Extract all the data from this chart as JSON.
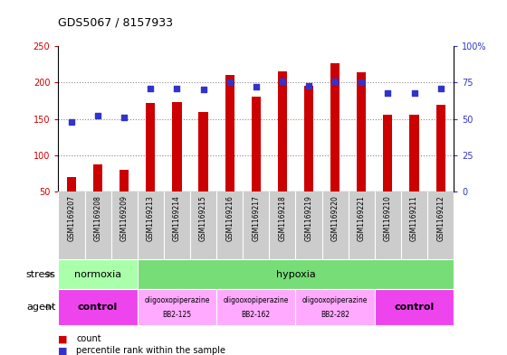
{
  "title": "GDS5067 / 8157933",
  "samples": [
    "GSM1169207",
    "GSM1169208",
    "GSM1169209",
    "GSM1169213",
    "GSM1169214",
    "GSM1169215",
    "GSM1169216",
    "GSM1169217",
    "GSM1169218",
    "GSM1169219",
    "GSM1169220",
    "GSM1169221",
    "GSM1169210",
    "GSM1169211",
    "GSM1169212"
  ],
  "counts": [
    70,
    87,
    80,
    172,
    173,
    160,
    210,
    181,
    215,
    196,
    226,
    214,
    156,
    156,
    170
  ],
  "percentiles": [
    48,
    52,
    51,
    71,
    71,
    70,
    75,
    72,
    76,
    73,
    76,
    75,
    68,
    68,
    71
  ],
  "bar_color": "#cc0000",
  "dot_color": "#3333cc",
  "ylim_left": [
    50,
    250
  ],
  "ylim_right": [
    0,
    100
  ],
  "yticks_left": [
    50,
    100,
    150,
    200,
    250
  ],
  "ytick_labels_left": [
    "50",
    "100",
    "150",
    "200",
    "250"
  ],
  "yticks_right": [
    0,
    25,
    50,
    75,
    100
  ],
  "ytick_labels_right": [
    "0",
    "25",
    "50",
    "75",
    "100%"
  ],
  "hlines": [
    100,
    150,
    200
  ],
  "stress_groups": [
    {
      "label": "normoxia",
      "start": 0,
      "end": 3,
      "color": "#aaffaa"
    },
    {
      "label": "hypoxia",
      "start": 3,
      "end": 15,
      "color": "#77dd77"
    }
  ],
  "agent_groups": [
    {
      "label": "control",
      "start": 0,
      "end": 3,
      "color": "#ee44ee",
      "two_line": false
    },
    {
      "label": "oligooxopiperazine\nBB2-125",
      "start": 3,
      "end": 6,
      "color": "#ffaaff",
      "two_line": true
    },
    {
      "label": "oligooxopiperazine\nBB2-162",
      "start": 6,
      "end": 9,
      "color": "#ffaaff",
      "two_line": true
    },
    {
      "label": "oligooxopiperazine\nBB2-282",
      "start": 9,
      "end": 12,
      "color": "#ffaaff",
      "two_line": true
    },
    {
      "label": "control",
      "start": 12,
      "end": 15,
      "color": "#ee44ee",
      "two_line": false
    }
  ],
  "legend_count_color": "#cc0000",
  "legend_pct_color": "#3333cc",
  "tick_color_left": "#cc0000",
  "tick_color_right": "#3333cc",
  "plot_bg_color": "#ffffff",
  "xtick_bg_color": "#cccccc",
  "grid_color": "#888888"
}
